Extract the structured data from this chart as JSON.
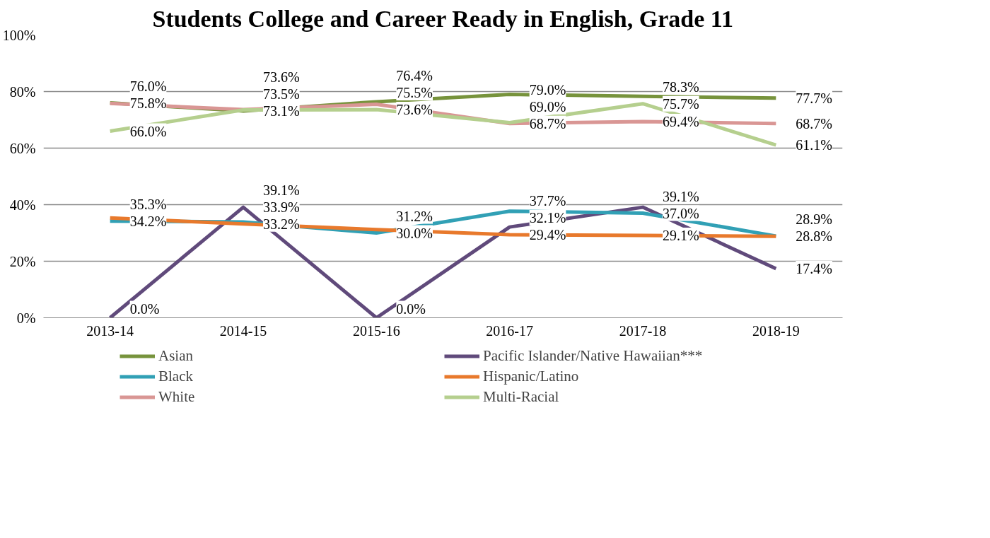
{
  "chart_data": {
    "type": "line",
    "title": "Students College and Career Ready in English, Grade 11",
    "categories": [
      "2013-14",
      "2014-15",
      "2015-16",
      "2016-17",
      "2017-18",
      "2018-19"
    ],
    "series": [
      {
        "name": "Asian",
        "color": "#77933c",
        "values": [
          76.0,
          73.1,
          76.4,
          79.0,
          78.3,
          77.7
        ],
        "value_labels": [
          "76.0%",
          "73.1%",
          "76.4%",
          "79.0%",
          "78.3%",
          "77.7%"
        ]
      },
      {
        "name": "Pacific Islander/Native Hawaiian***",
        "color": "#604a7b",
        "values": [
          0.0,
          39.1,
          0.0,
          32.1,
          39.1,
          17.4
        ],
        "value_labels": [
          "0.0%",
          "39.1%",
          "0.0%",
          "32.1%",
          "39.1%",
          "17.4%"
        ]
      },
      {
        "name": "Black",
        "color": "#31a0b5",
        "values": [
          34.2,
          33.9,
          30.0,
          37.7,
          37.0,
          28.9
        ],
        "value_labels": [
          "34.2%",
          "33.9%",
          "30.0%",
          "37.7%",
          "37.0%",
          "28.9%"
        ]
      },
      {
        "name": "Hispanic/Latino",
        "color": "#e8792c",
        "values": [
          35.3,
          33.2,
          31.2,
          29.4,
          29.1,
          28.8
        ],
        "value_labels": [
          "35.3%",
          "33.2%",
          "31.2%",
          "29.4%",
          "29.1%",
          "28.8%"
        ]
      },
      {
        "name": "White",
        "color": "#d99694",
        "values": [
          75.8,
          73.6,
          75.5,
          68.7,
          69.4,
          68.7
        ],
        "value_labels": [
          "75.8%",
          "73.6%",
          "75.5%",
          "68.7%",
          "69.4%",
          "68.7%"
        ]
      },
      {
        "name": "Multi-Racial",
        "color": "#b5cf8e",
        "values": [
          66.0,
          73.5,
          73.6,
          69.0,
          75.7,
          61.1
        ],
        "value_labels": [
          "66.0%",
          "73.5%",
          "73.6%",
          "69.0%",
          "75.7%",
          "61.1%"
        ]
      }
    ],
    "ylim": [
      0,
      100
    ],
    "yticks": [
      {
        "value": 0,
        "label": "0%"
      },
      {
        "value": 20,
        "label": "20%"
      },
      {
        "value": 40,
        "label": "40%"
      },
      {
        "value": 60,
        "label": "60%"
      },
      {
        "value": 80,
        "label": "80%"
      },
      {
        "value": 100,
        "label": "100%"
      }
    ],
    "grid": "y",
    "legend": "bottom",
    "marker": "none",
    "line_style": "solid"
  }
}
